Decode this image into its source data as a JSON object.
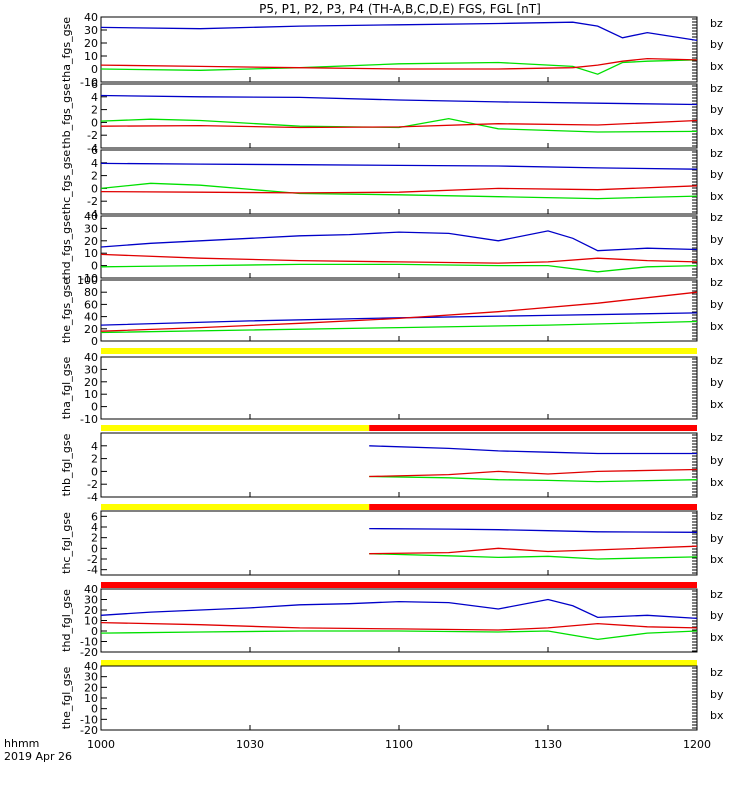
{
  "title": "P5, P1, P2, P3, P4 (TH-A,B,C,D,E) FGS, FGL [nT]",
  "footer": {
    "line1": "hhmm",
    "line2": "2019 Apr 26"
  },
  "colors": {
    "bx": "#0000c8",
    "by": "#00e000",
    "bz": "#e00000",
    "bar_yellow": "#ffff00",
    "bar_red": "#ff0000"
  },
  "chart_data": {
    "type": "line",
    "xlim": [
      "10:00",
      "12:00"
    ],
    "xticks": [
      "1000",
      "1030",
      "1100",
      "1130",
      "1200"
    ],
    "legend": [
      "bz",
      "by",
      "bx"
    ],
    "panels": [
      {
        "ylabel": "tha_fgs_gse",
        "ylim": [
          -10,
          40
        ],
        "yticks": [
          "40",
          "30",
          "20",
          "10",
          "0",
          "-10"
        ],
        "series": [
          {
            "name": "bx",
            "x": [
              "10:00",
              "10:20",
              "10:40",
              "11:00",
              "11:20",
              "11:35",
              "11:40",
              "11:45",
              "11:50",
              "12:00"
            ],
            "y": [
              32,
              31,
              33,
              34,
              35,
              36,
              33,
              24,
              28,
              22
            ]
          },
          {
            "name": "by",
            "x": [
              "10:00",
              "10:20",
              "10:40",
              "11:00",
              "11:20",
              "11:35",
              "11:40",
              "11:45",
              "11:50",
              "12:00"
            ],
            "y": [
              0,
              -1,
              1,
              4,
              5,
              2,
              -4,
              5,
              6,
              7
            ]
          },
          {
            "name": "bz",
            "x": [
              "10:00",
              "10:20",
              "10:40",
              "11:00",
              "11:20",
              "11:35",
              "11:40",
              "11:45",
              "11:50",
              "12:00"
            ],
            "y": [
              3,
              2,
              1,
              0,
              0,
              1,
              3,
              6,
              8,
              7
            ]
          }
        ]
      },
      {
        "ylabel": "thb_fgs_gse",
        "ylim": [
          -4,
          6
        ],
        "yticks": [
          "6",
          "4",
          "2",
          "0",
          "-2",
          "-4"
        ],
        "series": [
          {
            "name": "bx",
            "x": [
              "10:00",
              "10:20",
              "10:40",
              "11:00",
              "11:20",
              "11:40",
              "12:00"
            ],
            "y": [
              4.2,
              4.0,
              3.9,
              3.5,
              3.2,
              3.0,
              2.8
            ]
          },
          {
            "name": "by",
            "x": [
              "10:00",
              "10:10",
              "10:20",
              "10:40",
              "11:00",
              "11:10",
              "11:20",
              "11:40",
              "12:00"
            ],
            "y": [
              0.2,
              0.5,
              0.3,
              -0.6,
              -0.8,
              0.6,
              -1.0,
              -1.5,
              -1.4
            ]
          },
          {
            "name": "bz",
            "x": [
              "10:00",
              "10:20",
              "10:40",
              "11:00",
              "11:20",
              "11:40",
              "12:00"
            ],
            "y": [
              -0.6,
              -0.5,
              -0.8,
              -0.7,
              -0.2,
              -0.4,
              0.3
            ]
          }
        ]
      },
      {
        "ylabel": "thc_fgs_gse",
        "ylim": [
          -4,
          6
        ],
        "yticks": [
          "6",
          "4",
          "2",
          "0",
          "-2",
          "-4"
        ],
        "series": [
          {
            "name": "bx",
            "x": [
              "10:00",
              "10:20",
              "10:40",
              "11:00",
              "11:20",
              "11:40",
              "12:00"
            ],
            "y": [
              3.9,
              3.8,
              3.7,
              3.6,
              3.5,
              3.2,
              3.0
            ]
          },
          {
            "name": "by",
            "x": [
              "10:00",
              "10:10",
              "10:20",
              "10:40",
              "11:00",
              "11:20",
              "11:40",
              "12:00"
            ],
            "y": [
              0.0,
              0.8,
              0.5,
              -0.8,
              -1.0,
              -1.3,
              -1.6,
              -1.2
            ]
          },
          {
            "name": "bz",
            "x": [
              "10:00",
              "10:20",
              "10:40",
              "11:00",
              "11:20",
              "11:40",
              "12:00"
            ],
            "y": [
              -0.5,
              -0.6,
              -0.7,
              -0.6,
              0.0,
              -0.2,
              0.4
            ]
          }
        ]
      },
      {
        "ylabel": "thd_fgs_gse",
        "ylim": [
          -10,
          40
        ],
        "yticks": [
          "40",
          "30",
          "20",
          "10",
          "0",
          "-10"
        ],
        "series": [
          {
            "name": "bx",
            "x": [
              "10:00",
              "10:10",
              "10:20",
              "10:30",
              "10:40",
              "10:50",
              "11:00",
              "11:10",
              "11:20",
              "11:30",
              "11:35",
              "11:40",
              "11:50",
              "12:00"
            ],
            "y": [
              15,
              18,
              20,
              22,
              24,
              25,
              27,
              26,
              20,
              28,
              22,
              12,
              14,
              13
            ]
          },
          {
            "name": "by",
            "x": [
              "10:00",
              "10:20",
              "10:40",
              "11:00",
              "11:20",
              "11:30",
              "11:40",
              "11:50",
              "12:00"
            ],
            "y": [
              -1,
              0,
              1,
              1,
              0,
              0,
              -5,
              -1,
              0
            ]
          },
          {
            "name": "bz",
            "x": [
              "10:00",
              "10:20",
              "10:40",
              "11:00",
              "11:20",
              "11:30",
              "11:40",
              "11:50",
              "12:00"
            ],
            "y": [
              9,
              6,
              4,
              3,
              2,
              3,
              6,
              4,
              3
            ]
          }
        ]
      },
      {
        "ylabel": "the_fgs_gse",
        "ylim": [
          0,
          100
        ],
        "yticks": [
          "100",
          "80",
          "60",
          "40",
          "20",
          "0"
        ],
        "series": [
          {
            "name": "bx",
            "x": [
              "10:00",
              "10:30",
              "11:00",
              "11:30",
              "12:00"
            ],
            "y": [
              26,
              33,
              38,
              42,
              46
            ]
          },
          {
            "name": "by",
            "x": [
              "10:00",
              "10:30",
              "11:00",
              "11:30",
              "12:00"
            ],
            "y": [
              14,
              18,
              22,
              26,
              32
            ]
          },
          {
            "name": "bz",
            "x": [
              "10:00",
              "10:20",
              "10:40",
              "11:00",
              "11:20",
              "11:40",
              "12:00"
            ],
            "y": [
              16,
              22,
              29,
              37,
              48,
              62,
              80
            ]
          }
        ]
      },
      {
        "ylabel": "tha_fgl_gse",
        "ylim": [
          -10,
          40
        ],
        "yticks": [
          "40",
          "30",
          "20",
          "10",
          "0",
          "-10"
        ],
        "bar": [
          {
            "color": "yellow",
            "from": "10:00",
            "to": "12:00"
          }
        ],
        "series": []
      },
      {
        "ylabel": "thb_fgl_gse",
        "ylim": [
          -4,
          6
        ],
        "yticks": [
          "4",
          "2",
          "0",
          "-2",
          "-4"
        ],
        "bar": [
          {
            "color": "yellow",
            "from": "10:00",
            "to": "10:54"
          },
          {
            "color": "red",
            "from": "10:54",
            "to": "12:00"
          }
        ],
        "series": [
          {
            "name": "bx",
            "x": [
              "10:54",
              "11:10",
              "11:20",
              "11:30",
              "11:40",
              "12:00"
            ],
            "y": [
              4.0,
              3.6,
              3.2,
              3.0,
              2.8,
              2.8
            ]
          },
          {
            "name": "by",
            "x": [
              "10:54",
              "11:10",
              "11:20",
              "11:30",
              "11:40",
              "12:00"
            ],
            "y": [
              -0.8,
              -1.0,
              -1.3,
              -1.4,
              -1.6,
              -1.3
            ]
          },
          {
            "name": "bz",
            "x": [
              "10:54",
              "11:10",
              "11:20",
              "11:30",
              "11:40",
              "12:00"
            ],
            "y": [
              -0.8,
              -0.5,
              0.0,
              -0.4,
              0.0,
              0.3
            ]
          }
        ]
      },
      {
        "ylabel": "thc_fgl_gse",
        "ylim": [
          -5,
          7
        ],
        "yticks": [
          "6",
          "4",
          "2",
          "0",
          "-2",
          "-4"
        ],
        "bar": [
          {
            "color": "yellow",
            "from": "10:00",
            "to": "10:54"
          },
          {
            "color": "red",
            "from": "10:54",
            "to": "12:00"
          }
        ],
        "series": [
          {
            "name": "bx",
            "x": [
              "10:54",
              "11:10",
              "11:20",
              "11:30",
              "11:40",
              "12:00"
            ],
            "y": [
              3.7,
              3.6,
              3.5,
              3.3,
              3.1,
              3.0
            ]
          },
          {
            "name": "by",
            "x": [
              "10:54",
              "11:10",
              "11:20",
              "11:30",
              "11:40",
              "12:00"
            ],
            "y": [
              -1.0,
              -1.4,
              -1.7,
              -1.5,
              -2.0,
              -1.6
            ]
          },
          {
            "name": "bz",
            "x": [
              "10:54",
              "11:10",
              "11:20",
              "11:30",
              "11:40",
              "12:00"
            ],
            "y": [
              -1.0,
              -0.8,
              0.0,
              -0.6,
              -0.3,
              0.4
            ]
          }
        ]
      },
      {
        "ylabel": "thd_fgl_gse",
        "ylim": [
          -20,
          40
        ],
        "yticks": [
          "40",
          "30",
          "20",
          "10",
          "0",
          "-10",
          "-20"
        ],
        "bar": [
          {
            "color": "red",
            "from": "10:00",
            "to": "12:00"
          }
        ],
        "series": [
          {
            "name": "bx",
            "x": [
              "10:00",
              "10:10",
              "10:20",
              "10:30",
              "10:40",
              "10:50",
              "11:00",
              "11:10",
              "11:20",
              "11:30",
              "11:35",
              "11:40",
              "11:50",
              "12:00"
            ],
            "y": [
              15,
              18,
              20,
              22,
              25,
              26,
              28,
              27,
              21,
              30,
              24,
              13,
              15,
              12
            ]
          },
          {
            "name": "by",
            "x": [
              "10:00",
              "10:20",
              "10:40",
              "11:00",
              "11:20",
              "11:30",
              "11:40",
              "11:50",
              "12:00"
            ],
            "y": [
              -2,
              -1,
              0,
              0,
              -1,
              0,
              -8,
              -2,
              0
            ]
          },
          {
            "name": "bz",
            "x": [
              "10:00",
              "10:20",
              "10:40",
              "11:00",
              "11:20",
              "11:30",
              "11:40",
              "11:50",
              "12:00"
            ],
            "y": [
              8,
              6,
              3,
              2,
              1,
              3,
              7,
              4,
              3
            ]
          }
        ]
      },
      {
        "ylabel": "the_fgl_gse",
        "ylim": [
          -20,
          40
        ],
        "yticks": [
          "40",
          "30",
          "20",
          "10",
          "0",
          "-10",
          "-20"
        ],
        "bar": [
          {
            "color": "yellow",
            "from": "10:00",
            "to": "12:00"
          }
        ],
        "series": []
      }
    ]
  }
}
